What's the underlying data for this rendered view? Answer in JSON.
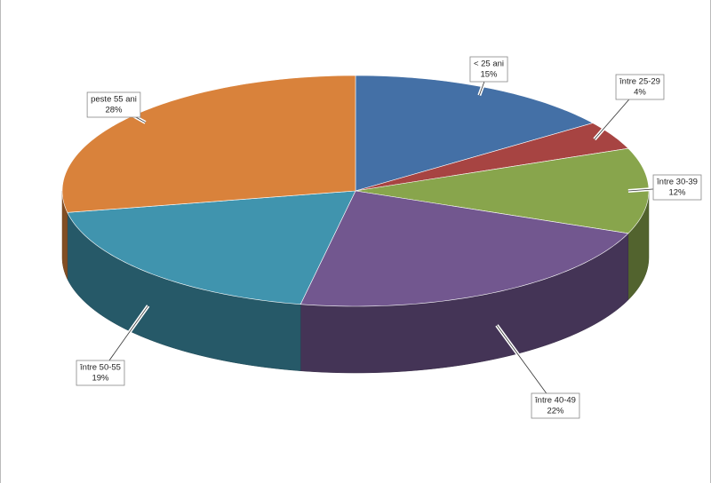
{
  "chart_data": {
    "type": "pie3d",
    "categories": [
      "< 25 ani",
      "între 25-29",
      "între 30-39",
      "între 40-49",
      "între 50-55",
      "peste 55 ani"
    ],
    "values": [
      15,
      4,
      12,
      22,
      19,
      28
    ],
    "value_labels": [
      "15%",
      "4%",
      "12%",
      "22%",
      "19%",
      "28%"
    ],
    "colors": [
      "#4470a6",
      "#a74442",
      "#88a54c",
      "#72578f",
      "#4094ae",
      "#d9823b"
    ]
  }
}
